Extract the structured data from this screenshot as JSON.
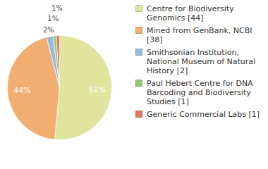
{
  "chart_data": {
    "type": "pie",
    "categories": [
      "Centre for Biodiversity Genomics [44]",
      "Mined from GenBank, NCBI [38]",
      "Smithsonian Institution, National Museum of Natural History [2]",
      "Paul Hebert Centre for DNA Barcoding and Biodiversity Studies [1]",
      "Generic Commercial Labs [1]"
    ],
    "values": [
      51,
      44,
      2,
      1,
      1
    ],
    "value_labels": [
      "51%",
      "44%",
      "2%",
      "1%",
      "1%"
    ],
    "colors": [
      "#dfe59d",
      "#f0ae70",
      "#9bb8df",
      "#9ac774",
      "#e07b62"
    ],
    "data_labels": true,
    "legend": "right"
  }
}
